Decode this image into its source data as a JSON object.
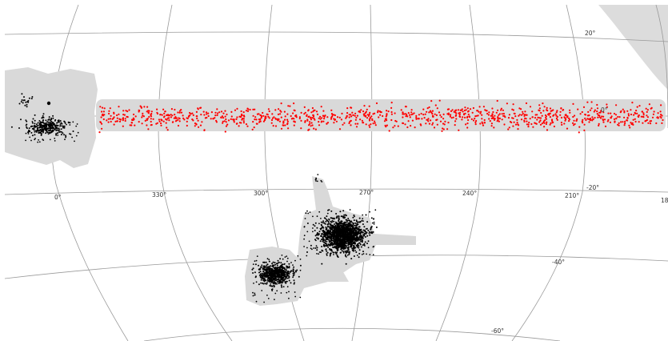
{
  "map": {
    "projection": "mollweide",
    "coordinate_labels": {
      "dec_20": "20°",
      "dec_0": "0°",
      "dec_m20": "-20°",
      "dec_m40": "-40°",
      "dec_m60": "-60°",
      "ra_0": "0°",
      "ra_330": "330°",
      "ra_300": "300°",
      "ra_270": "270°",
      "ra_240": "240°",
      "ra_210": "210°",
      "ra_180": "18"
    },
    "colors": {
      "background": "#ffffff",
      "grid": "#9a9a9a",
      "footprint": "#d9d9d9",
      "excluded_region": "#dcdcdc",
      "equatorial_points": "#ff0000",
      "cloud_points": "#000000"
    },
    "layers": [
      {
        "name": "footprint",
        "description_visible": false
      },
      {
        "name": "equatorial stripe",
        "point_color": "#ff0000"
      },
      {
        "name": "small cloud field",
        "point_color": "#000000"
      },
      {
        "name": "large cloud field",
        "point_color": "#000000"
      },
      {
        "name": "second small cloud field",
        "point_color": "#000000"
      }
    ]
  }
}
